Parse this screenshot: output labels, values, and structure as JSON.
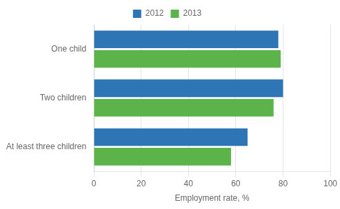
{
  "chart_data": {
    "type": "bar",
    "orientation": "horizontal",
    "categories": [
      "One child",
      "Two children",
      "At least three children"
    ],
    "series": [
      {
        "name": "2012",
        "color": "#2E75B6",
        "values": [
          78,
          80,
          65
        ]
      },
      {
        "name": "2013",
        "color": "#5BB34A",
        "values": [
          79,
          76,
          58
        ]
      }
    ],
    "xlabel": "Employment rate, %",
    "xlim": [
      0,
      100
    ],
    "xticks": [
      0,
      20,
      40,
      60,
      80,
      100
    ],
    "grid": true,
    "legend": "top"
  }
}
